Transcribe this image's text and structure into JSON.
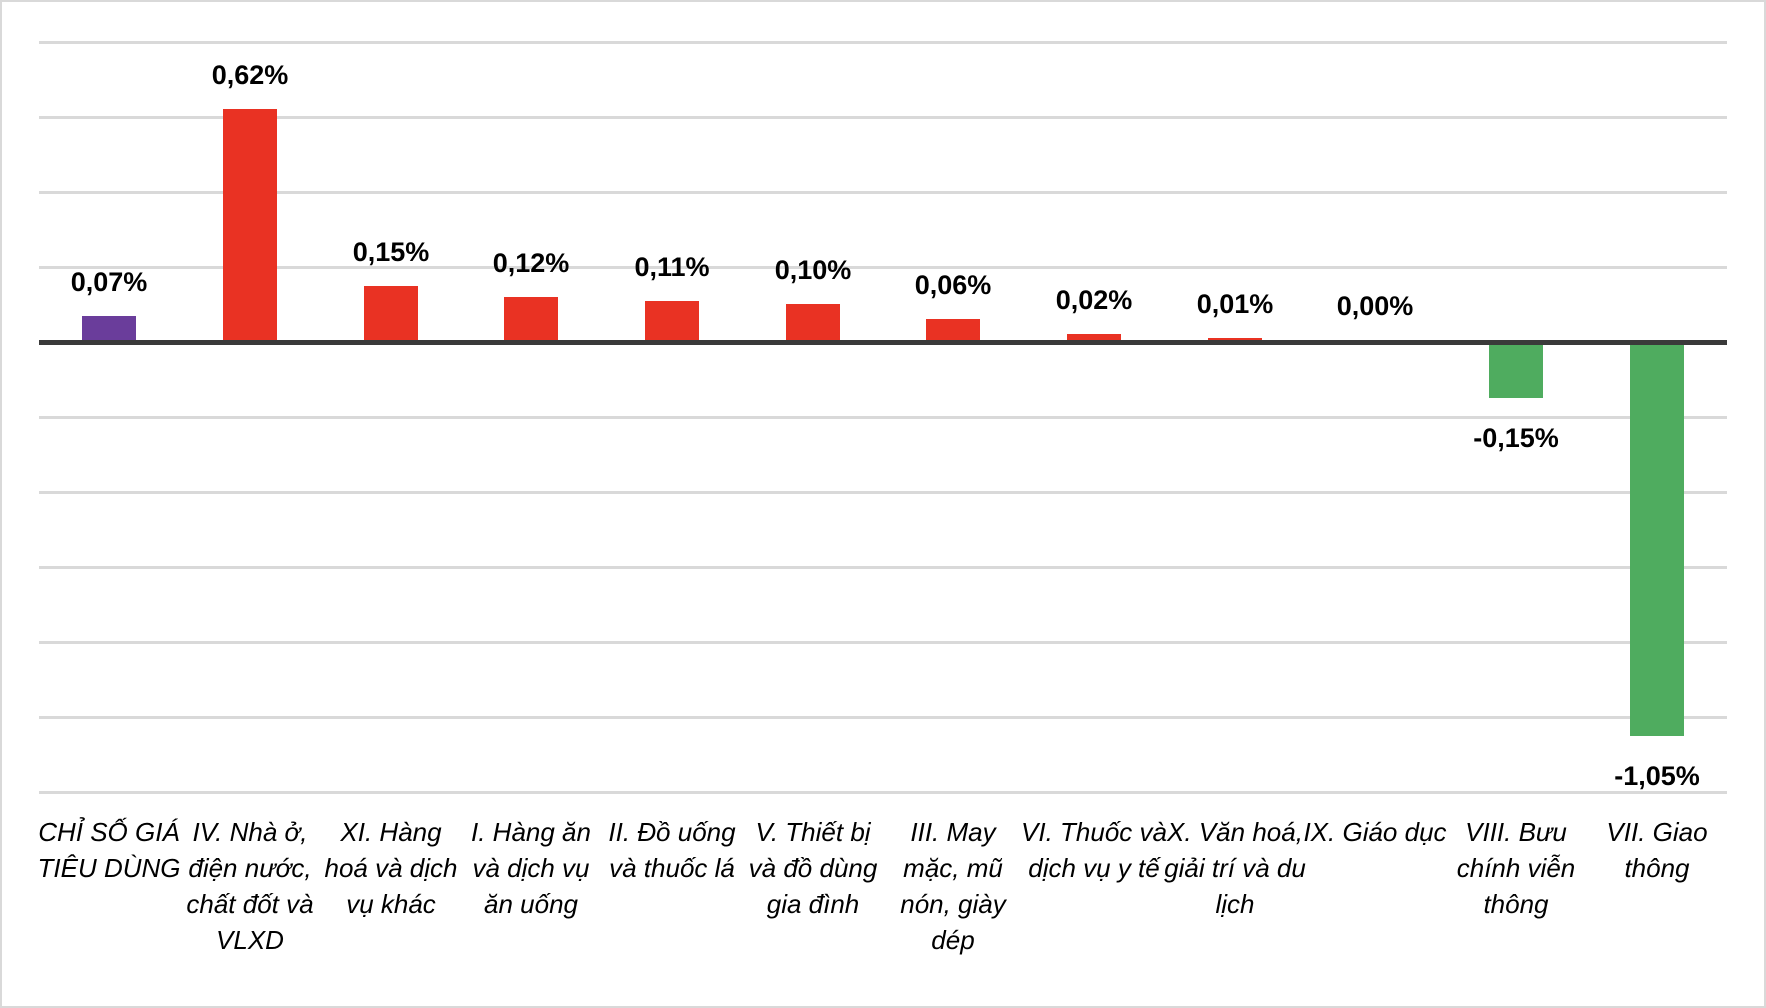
{
  "chart_data": {
    "type": "bar",
    "title": "",
    "xlabel": "",
    "ylabel": "",
    "categories": [
      "CHỈ SỐ GIÁ TIÊU DÙNG",
      "IV. Nhà ở, điện nước, chất đốt và VLXD",
      "XI. Hàng hoá và dịch vụ khác",
      "I. Hàng ăn và dịch vụ ăn uống",
      "II. Đồ uống và thuốc lá",
      "V. Thiết bị và đồ dùng gia đình",
      "III. May mặc, mũ nón, giày dép",
      "VI. Thuốc và dịch vụ y tế",
      "X. Văn hoá, giải trí và du lịch",
      "IX. Giáo dục",
      "VIII. Bưu chính viễn thông",
      "VII. Giao thông"
    ],
    "values": [
      0.07,
      0.62,
      0.15,
      0.12,
      0.11,
      0.1,
      0.06,
      0.02,
      0.01,
      0.0,
      -0.15,
      -1.05
    ],
    "value_labels": [
      "0,07%",
      "0,62%",
      "0,15%",
      "0,12%",
      "0,11%",
      "0,10%",
      "0,06%",
      "0,02%",
      "0,01%",
      "0,00%",
      "-0,15%",
      "-1,05%"
    ],
    "bar_colors": [
      "#6A3D9B",
      "#E93223",
      "#E93223",
      "#E93223",
      "#E93223",
      "#E93223",
      "#E93223",
      "#E93223",
      "#E93223",
      "#4FAC5F",
      "#4FAC5F",
      "#4FAC5F"
    ],
    "colors": {
      "cpi_index": "#6A3D9B",
      "increase": "#E93223",
      "decrease": "#4FAC5F",
      "gridline": "#D9D9D9",
      "axis": "#3A3A3A"
    },
    "ylim": [
      -1.2,
      0.8
    ],
    "grid_step": 0.2,
    "grid": true,
    "legend": false,
    "decimal_separator": ","
  }
}
